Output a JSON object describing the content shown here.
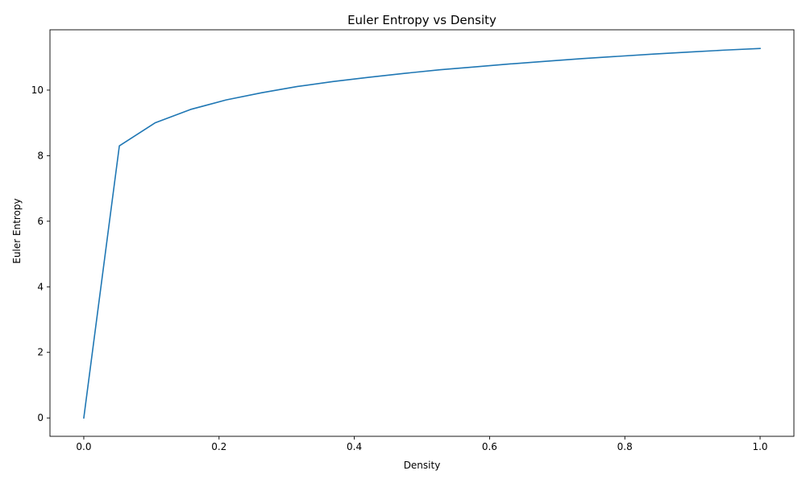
{
  "chart_data": {
    "type": "line",
    "title": "Euler Entropy vs Density",
    "xlabel": "Density",
    "ylabel": "Euler Entropy",
    "xlim": [
      -0.05,
      1.05
    ],
    "ylim": [
      -0.56,
      11.84
    ],
    "grid": false,
    "x_ticks": [
      0.0,
      0.2,
      0.4,
      0.6,
      0.8,
      1.0
    ],
    "x_tick_labels": [
      "0.0",
      "0.2",
      "0.4",
      "0.6",
      "0.8",
      "1.0"
    ],
    "y_ticks": [
      0,
      2,
      4,
      6,
      8,
      10
    ],
    "y_tick_labels": [
      "0",
      "2",
      "4",
      "6",
      "8",
      "10"
    ],
    "series": [
      {
        "color": "#1f77b4",
        "x": [
          0.0,
          0.0526,
          0.1053,
          0.1579,
          0.2105,
          0.2632,
          0.3158,
          0.3684,
          0.4211,
          0.4737,
          0.5263,
          0.5789,
          0.6316,
          0.6842,
          0.7368,
          0.7895,
          0.8421,
          0.8947,
          0.9474,
          1.0
        ],
        "y": [
          0.0,
          8.3,
          9.0,
          9.41,
          9.7,
          9.92,
          10.11,
          10.26,
          10.39,
          10.51,
          10.62,
          10.71,
          10.8,
          10.88,
          10.96,
          11.03,
          11.1,
          11.16,
          11.22,
          11.27
        ]
      }
    ]
  }
}
